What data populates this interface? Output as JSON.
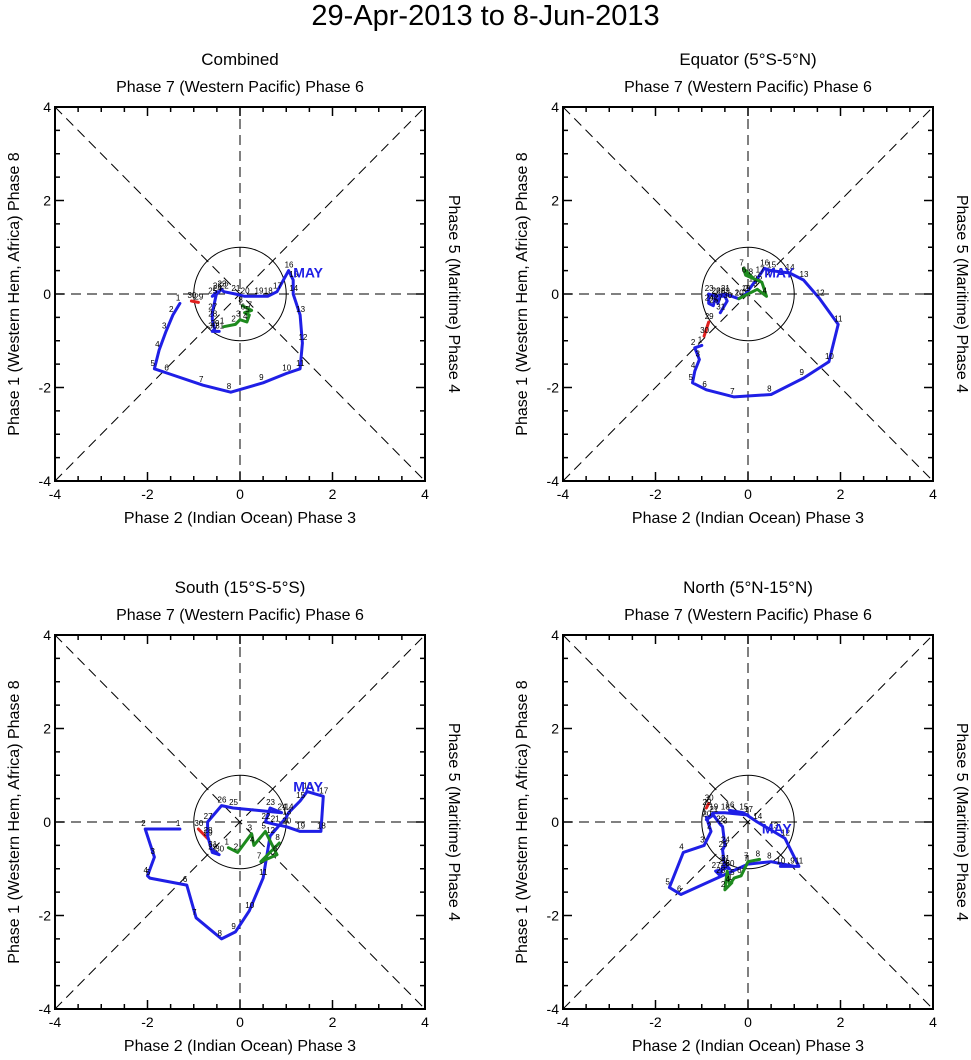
{
  "main_title": "29-Apr-2013 to 8-Jun-2013",
  "colors": {
    "april": "#e0201e",
    "may": "#1f1fe6",
    "june": "#1e8a1e",
    "guide": "#000000"
  },
  "chart_data": [
    {
      "type": "line",
      "title": "Combined",
      "top_label": "Phase 7 (Western Pacific) Phase 6",
      "bottom_label": "Phase 2 (Indian Ocean) Phase 3",
      "left_label": "Phase 1 (Western Hem, Africa) Phase 8",
      "right_label": "Phase 5 (Maritime) Phase 4",
      "month_label": "MAY",
      "month_label_at": [
        1.15,
        0.35
      ],
      "xlim": [
        -4,
        4
      ],
      "ylim": [
        -4,
        4
      ],
      "ticks": [
        -4,
        -2,
        0,
        2,
        4
      ],
      "series": [
        {
          "name": "Apr",
          "color": "april",
          "labels": [
            "29",
            "30"
          ],
          "points": [
            [
              -0.9,
              -0.18
            ],
            [
              -1.05,
              -0.15
            ]
          ]
        },
        {
          "name": "May",
          "color": "may",
          "labels": [
            "1",
            "2",
            "3",
            "4",
            "5",
            "6",
            "7",
            "8",
            "9",
            "10",
            "11",
            "12",
            "13",
            "14",
            "15",
            "16",
            "17",
            "18",
            "19",
            "20",
            "21",
            "22",
            "23",
            "24",
            "25",
            "26",
            "27",
            "28",
            "29",
            "30",
            "31"
          ],
          "points": [
            [
              -1.3,
              -0.2
            ],
            [
              -1.45,
              -0.45
            ],
            [
              -1.6,
              -0.8
            ],
            [
              -1.75,
              -1.2
            ],
            [
              -1.85,
              -1.6
            ],
            [
              -1.55,
              -1.7
            ],
            [
              -0.8,
              -1.95
            ],
            [
              -0.2,
              -2.1
            ],
            [
              0.5,
              -1.9
            ],
            [
              1.0,
              -1.7
            ],
            [
              1.3,
              -1.6
            ],
            [
              1.35,
              -1.05
            ],
            [
              1.3,
              -0.45
            ],
            [
              1.15,
              0.0
            ],
            [
              1.15,
              0.3
            ],
            [
              1.05,
              0.5
            ],
            [
              0.8,
              0.05
            ],
            [
              0.6,
              -0.05
            ],
            [
              0.4,
              -0.05
            ],
            [
              0.1,
              -0.05
            ],
            [
              -0.1,
              0.0
            ],
            [
              -0.35,
              0.05
            ],
            [
              -0.4,
              0.1
            ],
            [
              -0.5,
              0.0
            ],
            [
              -0.6,
              -0.05
            ],
            [
              -0.5,
              0.05
            ],
            [
              -0.6,
              -0.4
            ],
            [
              -0.6,
              -0.55
            ],
            [
              -0.55,
              -0.75
            ],
            [
              -0.6,
              -0.8
            ],
            [
              -0.45,
              -0.8
            ]
          ]
        },
        {
          "name": "Jun",
          "color": "june",
          "labels": [
            "1",
            "2",
            "3",
            "4",
            "5",
            "6",
            "7",
            "8"
          ],
          "points": [
            [
              -0.35,
              -0.7
            ],
            [
              -0.1,
              -0.65
            ],
            [
              0.0,
              -0.55
            ],
            [
              0.15,
              -0.6
            ],
            [
              0.2,
              -0.45
            ],
            [
              0.1,
              -0.4
            ],
            [
              0.25,
              -0.35
            ],
            [
              0.05,
              -0.25
            ]
          ]
        }
      ]
    },
    {
      "type": "line",
      "title": "Equator (5°S-5°N)",
      "top_label": "Phase 7 (Western Pacific) Phase 6",
      "bottom_label": "Phase 2 (Indian Ocean) Phase 3",
      "left_label": "Phase 1 (Western Hem, Africa) Phase 8",
      "right_label": "Phase 5 (Maritime) Phase 4",
      "month_label": "MAY",
      "month_label_at": [
        0.35,
        0.35
      ],
      "xlim": [
        -4,
        4
      ],
      "ylim": [
        -4,
        4
      ],
      "ticks": [
        -4,
        -2,
        0,
        2,
        4
      ],
      "series": [
        {
          "name": "Apr",
          "color": "april",
          "labels": [
            "29",
            "30"
          ],
          "points": [
            [
              -0.85,
              -0.6
            ],
            [
              -0.95,
              -0.9
            ]
          ]
        },
        {
          "name": "May",
          "color": "may",
          "labels": [
            "1",
            "2",
            "3",
            "4",
            "5",
            "6",
            "7",
            "8",
            "9",
            "10",
            "11",
            "12",
            "13",
            "14",
            "15",
            "16",
            "17",
            "18",
            "19",
            "20",
            "21",
            "22",
            "23",
            "24",
            "25",
            "26",
            "27",
            "28",
            "29",
            "30",
            "31"
          ],
          "points": [
            [
              -1.0,
              -1.1
            ],
            [
              -1.15,
              -1.15
            ],
            [
              -1.05,
              -1.4
            ],
            [
              -1.15,
              -1.65
            ],
            [
              -1.2,
              -1.9
            ],
            [
              -0.9,
              -2.05
            ],
            [
              -0.3,
              -2.2
            ],
            [
              0.5,
              -2.15
            ],
            [
              1.2,
              -1.8
            ],
            [
              1.75,
              -1.45
            ],
            [
              1.95,
              -0.65
            ],
            [
              1.55,
              -0.1
            ],
            [
              1.2,
              0.3
            ],
            [
              0.9,
              0.45
            ],
            [
              0.5,
              0.5
            ],
            [
              0.35,
              0.55
            ],
            [
              0.25,
              0.4
            ],
            [
              0.1,
              0.2
            ],
            [
              -0.05,
              0.0
            ],
            [
              -0.2,
              -0.1
            ],
            [
              -0.5,
              0.0
            ],
            [
              -0.7,
              -0.05
            ],
            [
              -0.85,
              0.0
            ],
            [
              -0.85,
              -0.2
            ],
            [
              -0.75,
              -0.25
            ],
            [
              -0.7,
              -0.05
            ],
            [
              -0.65,
              -0.2
            ],
            [
              -0.6,
              -0.05
            ],
            [
              -0.5,
              -0.05
            ],
            [
              -0.45,
              -0.15
            ],
            [
              -0.6,
              -0.4
            ]
          ]
        },
        {
          "name": "Jun",
          "color": "june",
          "labels": [
            "1",
            "2",
            "3",
            "4",
            "5",
            "6",
            "7",
            "8"
          ],
          "points": [
            [
              -0.2,
              -0.1
            ],
            [
              0.0,
              0.0
            ],
            [
              0.2,
              0.1
            ],
            [
              0.4,
              -0.05
            ],
            [
              0.3,
              0.25
            ],
            [
              -0.05,
              0.4
            ],
            [
              -0.1,
              0.55
            ],
            [
              0.1,
              0.35
            ]
          ]
        }
      ]
    },
    {
      "type": "line",
      "title": "South (15°S-5°S)",
      "top_label": "Phase 7 (Western Pacific) Phase 6",
      "bottom_label": "Phase 2 (Indian Ocean) Phase 3",
      "left_label": "Phase 1 (Western Hem, Africa) Phase 8",
      "right_label": "Phase 5 (Maritime) Phase 4",
      "month_label": "MAY",
      "month_label_at": [
        1.15,
        0.65
      ],
      "xlim": [
        -4,
        4
      ],
      "ylim": [
        -4,
        4
      ],
      "ticks": [
        -4,
        -2,
        0,
        2,
        4
      ],
      "series": [
        {
          "name": "Apr",
          "color": "april",
          "labels": [
            "29",
            "30"
          ],
          "points": [
            [
              -0.7,
              -0.35
            ],
            [
              -0.9,
              -0.15
            ]
          ]
        },
        {
          "name": "May",
          "color": "may",
          "labels": [
            "1",
            "2",
            "3",
            "4",
            "5",
            "6",
            "7",
            "8",
            "9",
            "10",
            "11",
            "12",
            "13",
            "14",
            "15",
            "16",
            "17",
            "18",
            "19",
            "20",
            "21",
            "22",
            "23",
            "24",
            "25",
            "26",
            "27",
            "28",
            "29",
            "30",
            "31"
          ],
          "points": [
            [
              -1.3,
              -0.15
            ],
            [
              -2.05,
              -0.15
            ],
            [
              -1.85,
              -0.75
            ],
            [
              -2.0,
              -1.15
            ],
            [
              -1.95,
              -1.2
            ],
            [
              -1.15,
              -1.35
            ],
            [
              -0.95,
              -2.05
            ],
            [
              -0.4,
              -2.5
            ],
            [
              -0.1,
              -2.35
            ],
            [
              0.2,
              -1.9
            ],
            [
              0.5,
              -1.2
            ],
            [
              0.65,
              -0.3
            ],
            [
              1.0,
              0.1
            ],
            [
              1.05,
              0.2
            ],
            [
              1.3,
              0.45
            ],
            [
              1.45,
              0.65
            ],
            [
              1.8,
              0.55
            ],
            [
              1.75,
              -0.2
            ],
            [
              1.3,
              -0.2
            ],
            [
              1.0,
              -0.1
            ],
            [
              0.75,
              -0.05
            ],
            [
              0.55,
              0.0
            ],
            [
              0.65,
              0.3
            ],
            [
              0.9,
              0.2
            ],
            [
              -0.15,
              0.3
            ],
            [
              -0.4,
              0.35
            ],
            [
              -0.7,
              0.0
            ],
            [
              -0.7,
              -0.3
            ],
            [
              -0.6,
              -0.65
            ],
            [
              -0.45,
              -0.7
            ],
            [
              -0.6,
              -0.6
            ]
          ]
        },
        {
          "name": "Jun",
          "color": "june",
          "labels": [
            "1",
            "2",
            "3",
            "4",
            "5",
            "6",
            "7",
            "8"
          ],
          "points": [
            [
              -0.25,
              -0.55
            ],
            [
              -0.05,
              -0.65
            ],
            [
              0.25,
              -0.25
            ],
            [
              0.3,
              -0.5
            ],
            [
              0.55,
              -0.2
            ],
            [
              0.8,
              -0.7
            ],
            [
              0.45,
              -0.85
            ],
            [
              0.85,
              -0.45
            ]
          ]
        }
      ]
    },
    {
      "type": "line",
      "title": "North (5°N-15°N)",
      "top_label": "Phase 7 (Western Pacific) Phase 6",
      "bottom_label": "Phase 2 (Indian Ocean) Phase 3",
      "left_label": "Phase 1 (Western Hem, Africa) Phase 8",
      "right_label": "Phase 5 (Maritime) Phase 4",
      "month_label": "MAY",
      "month_label_at": [
        0.3,
        -0.25
      ],
      "xlim": [
        -4,
        4
      ],
      "ylim": [
        -4,
        4
      ],
      "ticks": [
        -4,
        -2,
        0,
        2,
        4
      ],
      "series": [
        {
          "name": "Apr",
          "color": "april",
          "labels": [
            "29",
            "30"
          ],
          "points": [
            [
              -0.9,
              0.3
            ],
            [
              -0.85,
              0.4
            ]
          ]
        },
        {
          "name": "May",
          "color": "may",
          "labels": [
            "1",
            "2",
            "3",
            "4",
            "5",
            "6",
            "7",
            "8",
            "9",
            "10",
            "11",
            "12",
            "13",
            "14",
            "15",
            "16",
            "17",
            "18",
            "19",
            "20",
            "21",
            "22",
            "23",
            "24",
            "25",
            "26",
            "27",
            "28",
            "29",
            "30",
            "31"
          ],
          "points": [
            [
              -0.9,
              0.1
            ],
            [
              -0.8,
              -0.2
            ],
            [
              -0.95,
              -0.5
            ],
            [
              -1.4,
              -0.65
            ],
            [
              -1.7,
              -1.4
            ],
            [
              -1.45,
              -1.55
            ],
            [
              0.0,
              -0.9
            ],
            [
              0.5,
              -0.85
            ],
            [
              1.0,
              -0.95
            ],
            [
              0.7,
              -0.95
            ],
            [
              1.1,
              -0.95
            ],
            [
              0.8,
              -0.35
            ],
            [
              0.55,
              -0.2
            ],
            [
              0.2,
              0.0
            ],
            [
              -0.1,
              0.2
            ],
            [
              -0.4,
              0.25
            ],
            [
              0.0,
              0.15
            ],
            [
              -0.5,
              0.2
            ],
            [
              -0.75,
              0.2
            ],
            [
              -0.9,
              0.05
            ],
            [
              -0.75,
              0.15
            ],
            [
              -0.6,
              -0.05
            ],
            [
              -0.55,
              -0.1
            ],
            [
              -0.5,
              -0.5
            ],
            [
              -0.55,
              -0.6
            ],
            [
              -0.5,
              -1.0
            ],
            [
              -0.7,
              -1.05
            ],
            [
              -0.6,
              -1.15
            ],
            [
              -0.55,
              -0.95
            ],
            [
              -0.4,
              -1.0
            ],
            [
              -0.5,
              -0.9
            ]
          ]
        },
        {
          "name": "Jun",
          "color": "june",
          "labels": [
            "1",
            "2",
            "3",
            "4",
            "5",
            "6",
            "7",
            "8"
          ],
          "points": [
            [
              -0.35,
              -1.3
            ],
            [
              -0.5,
              -1.45
            ],
            [
              -0.45,
              -1.05
            ],
            [
              -0.4,
              -1.35
            ],
            [
              -0.3,
              -1.2
            ],
            [
              -0.15,
              -1.15
            ],
            [
              0.0,
              -0.85
            ],
            [
              0.25,
              -0.8
            ]
          ]
        }
      ]
    }
  ]
}
